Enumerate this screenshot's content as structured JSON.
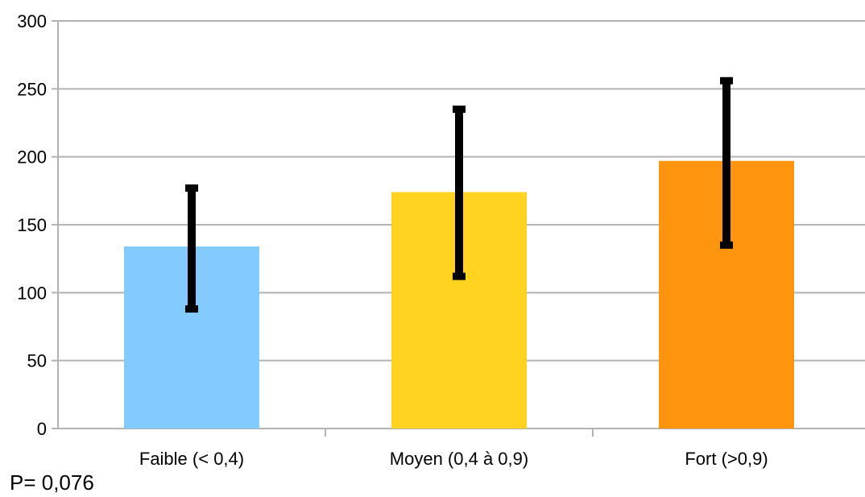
{
  "chart_data": {
    "type": "bar",
    "categories": [
      "Faible (< 0,4)",
      "Moyen (0,4 à 0,9)",
      "Fort (>0,9)"
    ],
    "values": [
      134,
      174,
      197
    ],
    "error_low": [
      88,
      112,
      135
    ],
    "error_high": [
      177,
      235,
      256
    ],
    "colors": [
      "#83caff",
      "#ffd320",
      "#ff950e"
    ],
    "ylim": [
      0,
      300
    ],
    "yticks": [
      "0",
      "50",
      "100",
      "150",
      "200",
      "250",
      "300"
    ],
    "ytick_values": [
      0,
      50,
      100,
      150,
      200,
      250,
      300
    ],
    "grid": true,
    "legend": false
  },
  "annotation": {
    "p_value": "P= 0,076"
  }
}
